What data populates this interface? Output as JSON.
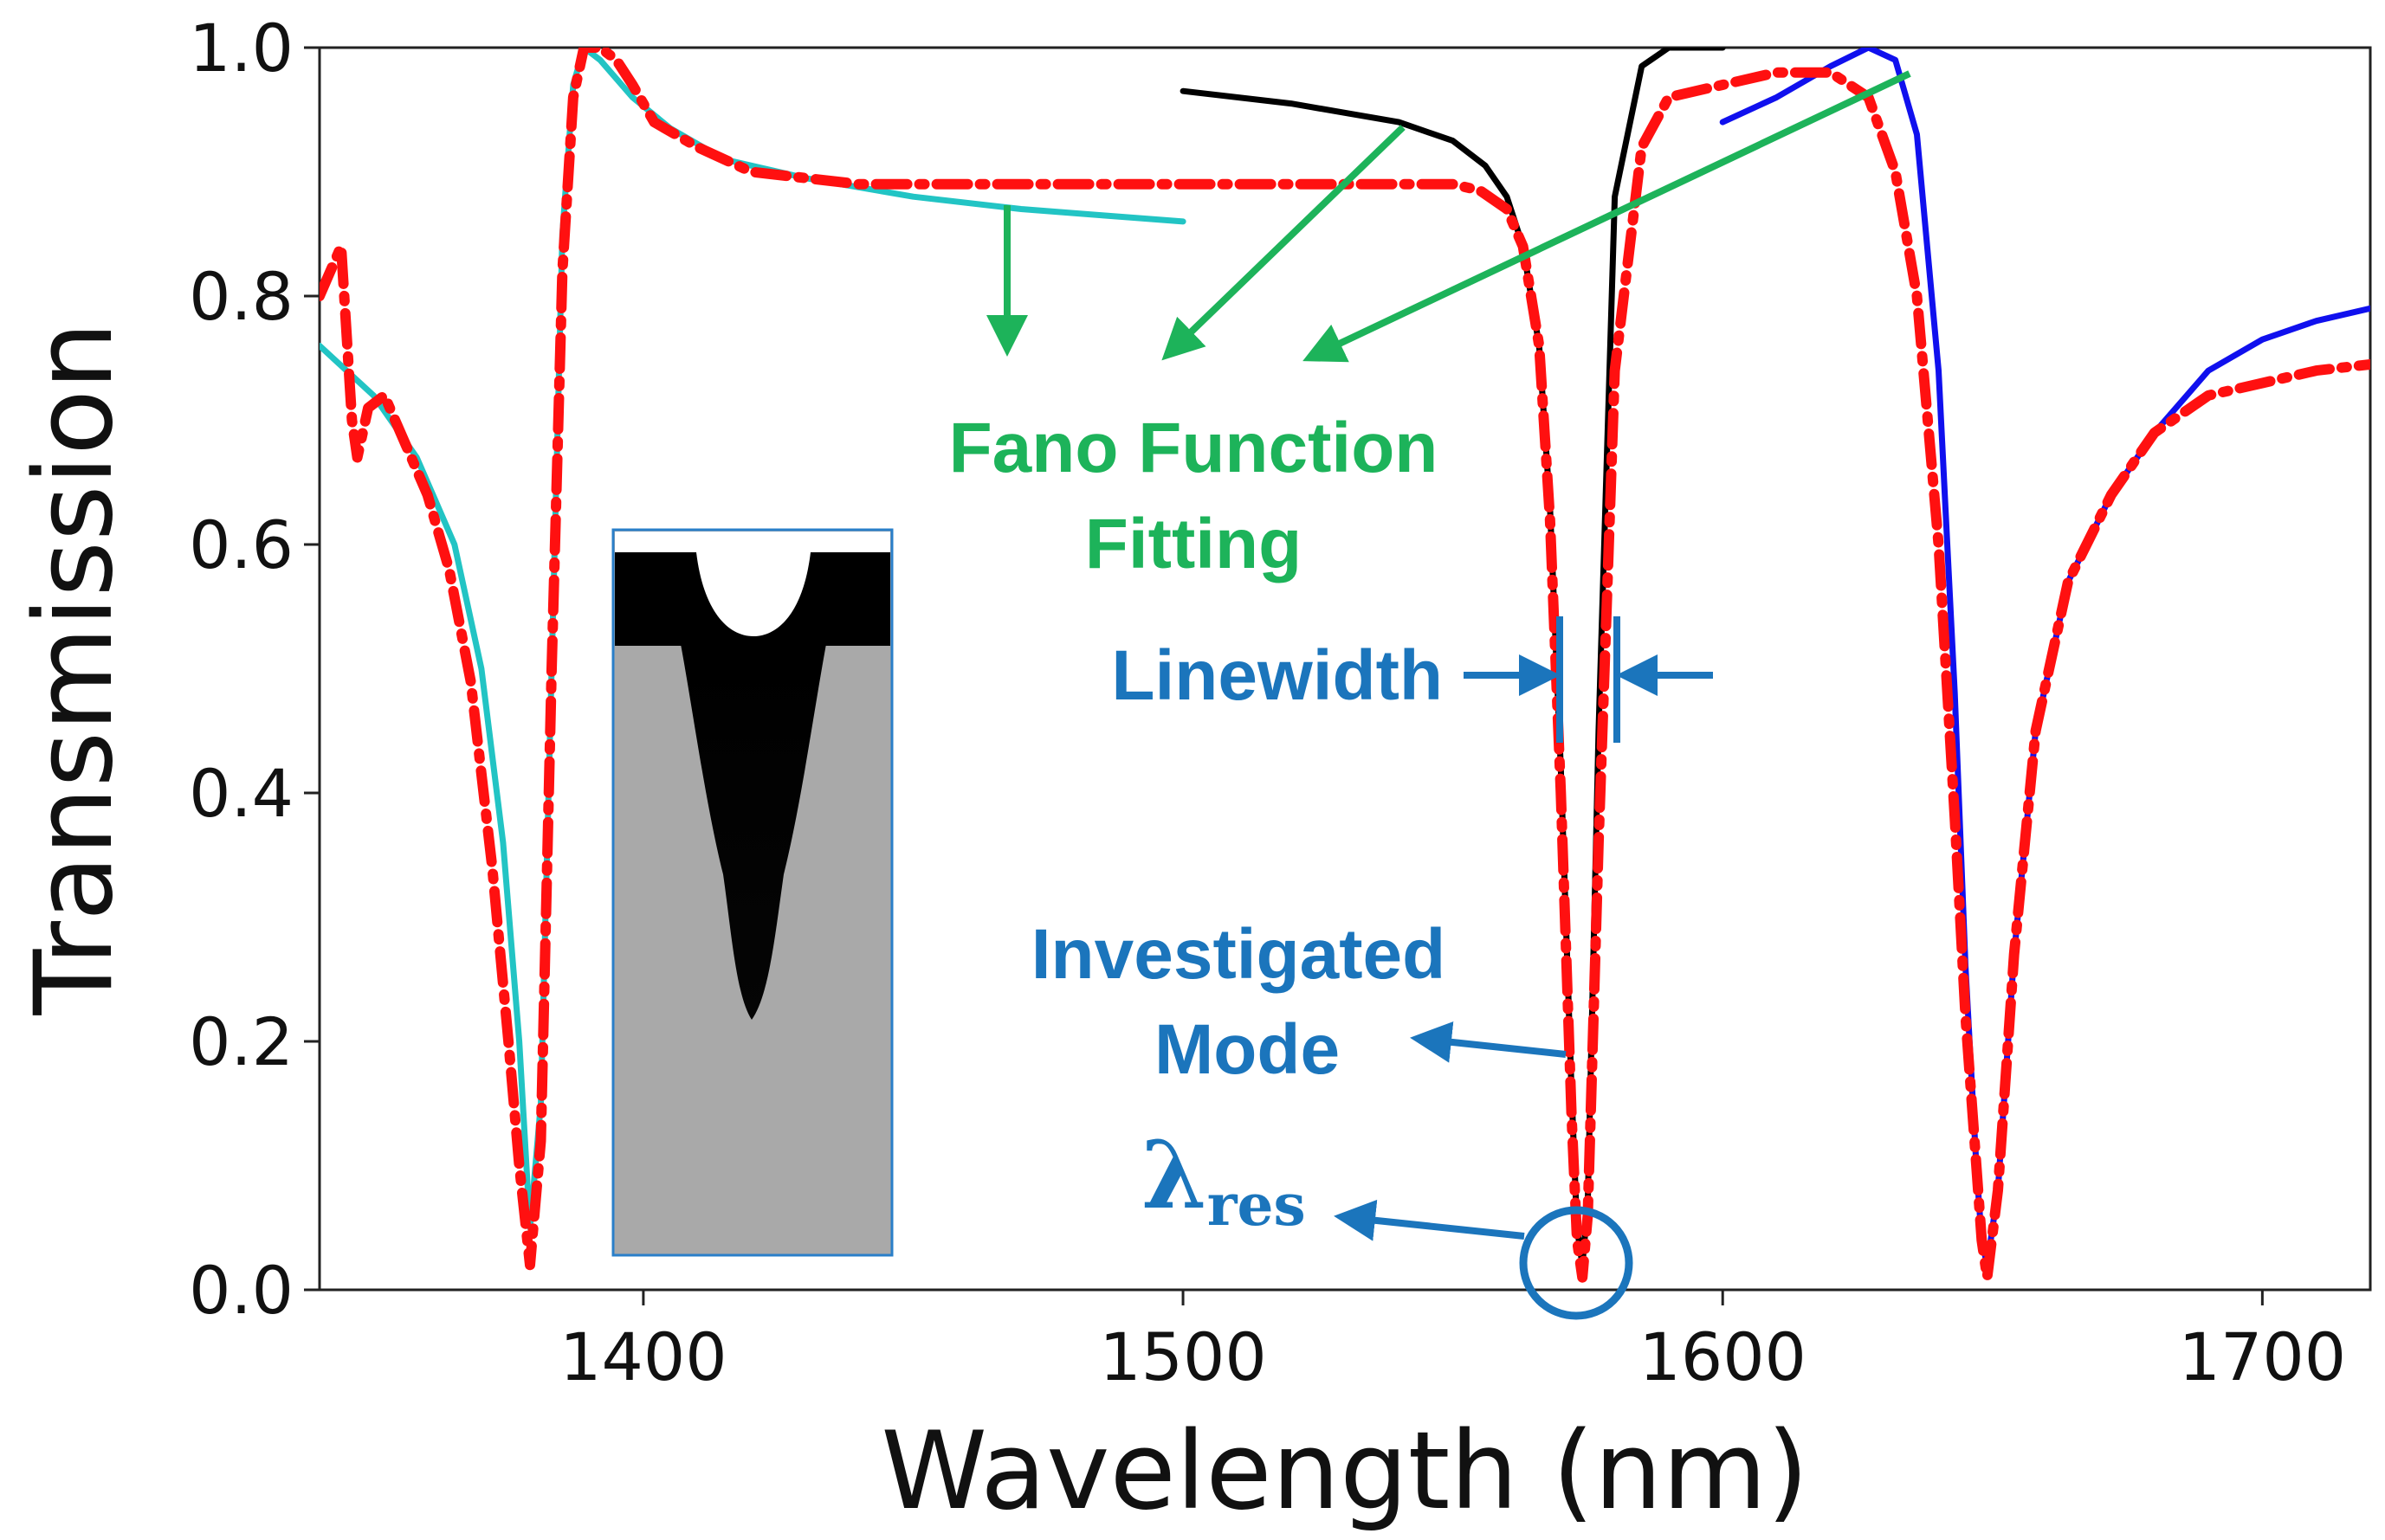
{
  "chart_data": {
    "type": "line",
    "xlabel": "Wavelength (nm)",
    "ylabel": "Transmission",
    "xlim": [
      1340,
      1720
    ],
    "ylim": [
      0.0,
      1.0
    ],
    "xticks": [
      1400,
      1500,
      1600,
      1700
    ],
    "yticks": [
      0.0,
      0.2,
      0.4,
      0.6,
      0.8,
      1.0
    ],
    "tick_labels_x": [
      "1400",
      "1500",
      "1600",
      "1700"
    ],
    "tick_labels_y": [
      "0.0",
      "0.2",
      "0.4",
      "0.6",
      "0.8",
      "1.0"
    ],
    "grid": false,
    "series": [
      {
        "color": "#ff1010",
        "style": "dash-dot",
        "x": [
          1340,
          1344,
          1346,
          1347,
          1349,
          1352,
          1356,
          1360,
          1364,
          1368,
          1372,
          1375,
          1377,
          1379,
          1381,
          1383,
          1385,
          1387,
          1389,
          1392,
          1395,
          1398,
          1402,
          1410,
          1420,
          1440,
          1460,
          1480,
          1500,
          1520,
          1540,
          1550,
          1555,
          1560,
          1563,
          1566,
          1568,
          1570,
          1572,
          1573,
          1574,
          1575,
          1577,
          1580,
          1585,
          1590,
          1600,
          1610,
          1620,
          1627,
          1632,
          1636,
          1640,
          1643,
          1645,
          1647,
          1648,
          1649,
          1651,
          1654,
          1658,
          1664,
          1672,
          1680,
          1690,
          1700,
          1710,
          1720
        ],
        "y": [
          0.8,
          0.84,
          0.7,
          0.67,
          0.71,
          0.72,
          0.68,
          0.64,
          0.58,
          0.49,
          0.34,
          0.2,
          0.1,
          0.02,
          0.12,
          0.5,
          0.82,
          0.96,
          1.0,
          1.0,
          0.99,
          0.97,
          0.94,
          0.92,
          0.9,
          0.89,
          0.89,
          0.89,
          0.89,
          0.89,
          0.89,
          0.89,
          0.885,
          0.87,
          0.84,
          0.76,
          0.62,
          0.4,
          0.14,
          0.04,
          0.01,
          0.06,
          0.36,
          0.74,
          0.92,
          0.96,
          0.97,
          0.98,
          0.98,
          0.96,
          0.9,
          0.8,
          0.6,
          0.38,
          0.22,
          0.1,
          0.04,
          0.01,
          0.08,
          0.27,
          0.45,
          0.57,
          0.64,
          0.69,
          0.72,
          0.73,
          0.74,
          0.745
        ]
      },
      {
        "color": "#22c4c4",
        "style": "solid",
        "x": [
          1340,
          1350,
          1358,
          1365,
          1370,
          1374,
          1377,
          1379,
          1381,
          1383,
          1385,
          1387,
          1389,
          1392,
          1398,
          1405,
          1415,
          1430,
          1450,
          1470,
          1485,
          1500
        ],
        "y": [
          0.76,
          0.72,
          0.67,
          0.6,
          0.5,
          0.36,
          0.2,
          0.05,
          0.15,
          0.5,
          0.85,
          0.97,
          1.0,
          0.99,
          0.96,
          0.935,
          0.91,
          0.895,
          0.88,
          0.87,
          0.865,
          0.86
        ]
      },
      {
        "color": "#000000",
        "style": "solid",
        "x": [
          1500,
          1520,
          1540,
          1550,
          1556,
          1560,
          1563,
          1566,
          1568,
          1570,
          1572,
          1573,
          1574,
          1575,
          1577,
          1580,
          1585,
          1590,
          1600
        ],
        "y": [
          0.965,
          0.955,
          0.94,
          0.925,
          0.905,
          0.88,
          0.84,
          0.76,
          0.63,
          0.42,
          0.16,
          0.05,
          0.02,
          0.07,
          0.45,
          0.88,
          0.985,
          1.0,
          1.0
        ]
      },
      {
        "color": "#1010ee",
        "style": "solid",
        "x": [
          1600,
          1610,
          1620,
          1627,
          1632,
          1636,
          1640,
          1643,
          1645,
          1647,
          1648,
          1649,
          1651,
          1654,
          1658,
          1664,
          1672,
          1680,
          1690,
          1700,
          1710,
          1720
        ],
        "y": [
          0.94,
          0.96,
          0.985,
          1.0,
          0.99,
          0.93,
          0.74,
          0.48,
          0.26,
          0.1,
          0.04,
          0.02,
          0.08,
          0.27,
          0.45,
          0.57,
          0.64,
          0.69,
          0.74,
          0.765,
          0.78,
          0.79
        ]
      }
    ],
    "annotations": {
      "fano_line1": "Fano Function",
      "fano_line2": "Fitting",
      "linewidth": "Linewidth",
      "investigated_line1": "Investigated",
      "investigated_line2": "Mode",
      "lambda_symbol": "λ",
      "lambda_subscript": "res"
    },
    "colors": {
      "annotation_green": "#1db35a",
      "annotation_blue": "#1b75bc"
    }
  }
}
